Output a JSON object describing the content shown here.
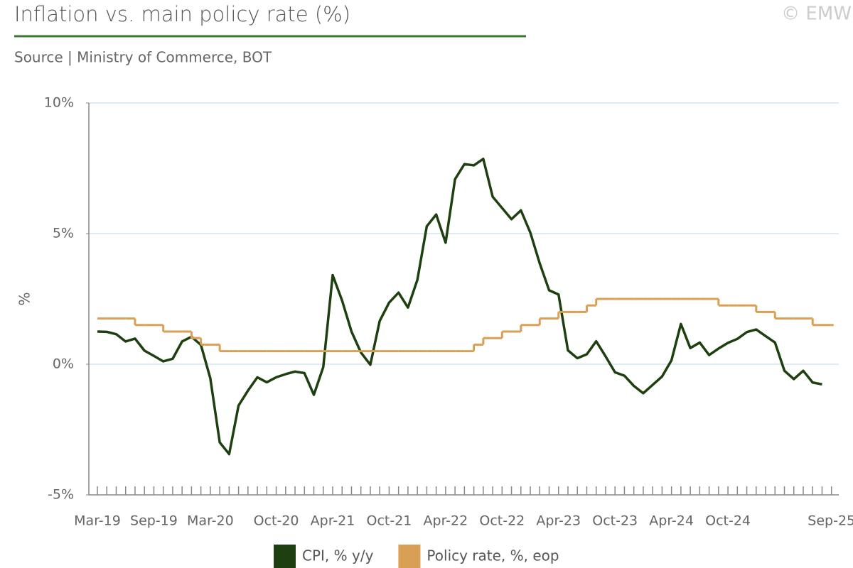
{
  "header": {
    "title": "Inflation vs. main policy rate (%)",
    "credit": "© EMW",
    "subtitle": "Source | Ministry of Commerce, BOT"
  },
  "chart_data": {
    "type": "line",
    "y_label": "%",
    "categories": [
      "Mar-19",
      null,
      null,
      null,
      null,
      null,
      "Sep-19",
      null,
      null,
      null,
      null,
      null,
      "Mar-20",
      null,
      null,
      null,
      null,
      null,
      null,
      "Oct-20",
      null,
      null,
      null,
      null,
      null,
      "Apr-21",
      null,
      null,
      null,
      null,
      null,
      "Oct-21",
      null,
      null,
      null,
      null,
      null,
      "Apr-22",
      null,
      null,
      null,
      null,
      null,
      "Oct-22",
      null,
      null,
      null,
      null,
      null,
      "Apr-23",
      null,
      null,
      null,
      null,
      null,
      "Oct-23",
      null,
      null,
      null,
      null,
      null,
      "Apr-24",
      null,
      null,
      null,
      null,
      null,
      "Oct-24",
      null,
      null,
      null,
      null,
      null,
      null,
      null,
      null,
      null,
      null,
      "Sep-25"
    ],
    "series": [
      {
        "name": "CPI, % y/y",
        "color": "#1e4010",
        "step": false,
        "values": [
          1.25,
          1.24,
          1.15,
          0.87,
          0.98,
          0.52,
          0.32,
          0.11,
          0.21,
          0.87,
          1.05,
          0.74,
          -0.54,
          -2.99,
          -3.44,
          -1.58,
          -1.01,
          -0.5,
          -0.69,
          -0.5,
          -0.38,
          -0.28,
          -0.34,
          -1.17,
          -0.11,
          3.41,
          2.44,
          1.25,
          0.45,
          -0.02,
          1.66,
          2.36,
          2.74,
          2.17,
          3.23,
          5.28,
          5.73,
          4.65,
          7.08,
          7.66,
          7.61,
          7.86,
          6.41,
          5.98,
          5.55,
          5.89,
          5.04,
          3.86,
          2.83,
          2.67,
          0.53,
          0.23,
          0.38,
          0.88,
          0.3,
          -0.31,
          -0.44,
          -0.83,
          -1.11,
          -0.79,
          -0.47,
          0.15,
          1.54,
          0.62,
          0.83,
          0.35,
          0.6,
          0.82,
          0.97,
          1.23,
          1.33,
          1.08,
          0.83,
          -0.25,
          -0.57,
          -0.25,
          -0.7,
          -0.77,
          null
        ]
      },
      {
        "name": "Policy rate, %, eop",
        "color": "#d9a055",
        "step": true,
        "values": [
          1.75,
          1.75,
          1.75,
          1.75,
          1.5,
          1.5,
          1.5,
          1.25,
          1.25,
          1.25,
          1.0,
          0.75,
          0.75,
          0.5,
          0.5,
          0.5,
          0.5,
          0.5,
          0.5,
          0.5,
          0.5,
          0.5,
          0.5,
          0.5,
          0.5,
          0.5,
          0.5,
          0.5,
          0.5,
          0.5,
          0.5,
          0.5,
          0.5,
          0.5,
          0.5,
          0.5,
          0.5,
          0.5,
          0.5,
          0.5,
          0.75,
          1.0,
          1.0,
          1.25,
          1.25,
          1.5,
          1.5,
          1.75,
          1.75,
          2.0,
          2.0,
          2.0,
          2.25,
          2.5,
          2.5,
          2.5,
          2.5,
          2.5,
          2.5,
          2.5,
          2.5,
          2.5,
          2.5,
          2.5,
          2.5,
          2.5,
          2.25,
          2.25,
          2.25,
          2.25,
          2.0,
          2.0,
          1.75,
          1.75,
          1.75,
          1.75,
          1.5,
          1.5,
          1.5
        ]
      }
    ],
    "ylim": [
      -5,
      10
    ],
    "yticks": [
      {
        "value": -5,
        "label": "-5%"
      },
      {
        "value": 0,
        "label": "0%"
      },
      {
        "value": 5,
        "label": "5%"
      },
      {
        "value": 10,
        "label": "10%"
      }
    ],
    "grid": true
  }
}
